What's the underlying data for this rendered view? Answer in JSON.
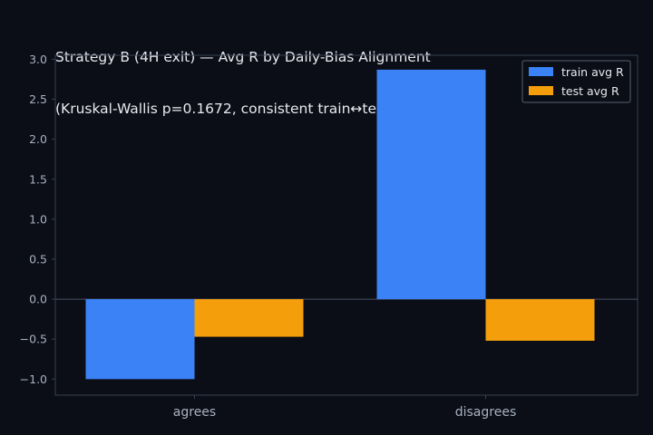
{
  "chart_data": {
    "type": "bar",
    "title": "Strategy B (4H exit) — Avg R by Daily-Bias Alignment",
    "subtitle": "(Kruskal-Wallis p=0.1672, consistent train↔test: False)",
    "categories": [
      "agrees",
      "disagrees"
    ],
    "series": [
      {
        "name": "train avg R",
        "values": [
          -1.0,
          2.87
        ],
        "color": "#3b82f6"
      },
      {
        "name": "test avg R",
        "values": [
          -0.47,
          -0.52
        ],
        "color": "#f59e0b"
      }
    ],
    "xlabel": "",
    "ylabel": "",
    "ylim": [
      -1.2,
      3.05
    ],
    "yticks": [
      "−1.0",
      "−0.5",
      "0.0",
      "0.5",
      "1.0",
      "1.5",
      "2.0",
      "2.5",
      "3.0"
    ],
    "ytick_values": [
      -1.0,
      -0.5,
      0.0,
      0.5,
      1.0,
      1.5,
      2.0,
      2.5,
      3.0
    ],
    "legend_position": "top-right",
    "grid": false,
    "zero_line": true
  },
  "colors": {
    "background": "#0b0e17",
    "axis": "#3a4050",
    "text": "#e8eaf0",
    "tick_text": "#a9b0bf"
  }
}
